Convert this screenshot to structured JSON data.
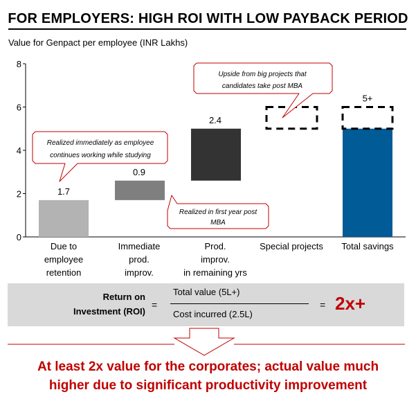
{
  "header": {
    "title": "FOR EMPLOYERS: HIGH ROI WITH LOW PAYBACK PERIOD"
  },
  "chart_data": {
    "type": "bar",
    "subtitle": "Value for Genpact per employee (INR Lakhs)",
    "ylim": [
      0,
      8
    ],
    "yticks": [
      "0",
      "2",
      "4",
      "6",
      "8"
    ],
    "categories": [
      [
        "Due to",
        "employee",
        "retention"
      ],
      [
        "Immediate",
        "prod.",
        "improv."
      ],
      [
        "Prod.",
        "improv.",
        "in remaining yrs"
      ],
      [
        "Special projects"
      ],
      [
        "Total savings"
      ]
    ],
    "bars": [
      {
        "base": 0,
        "value": 1.7,
        "label": "1.7",
        "color": "#b3b3b3"
      },
      {
        "base": 1.7,
        "value": 0.9,
        "label": "0.9",
        "color": "#7f7f7f"
      },
      {
        "base": 2.6,
        "value": 2.4,
        "label": "2.4",
        "color": "#333333"
      },
      {
        "base": 5.0,
        "value": 1.0,
        "label": "",
        "color": "none",
        "dashed": true
      },
      {
        "base": 0,
        "value": 5.0,
        "label": "",
        "color": "#005b96"
      },
      {
        "base": 5.0,
        "value": 1.0,
        "label": "5+",
        "color": "none",
        "dashed": true
      }
    ],
    "annotations": [
      {
        "text": [
          "Realized immediately as employee",
          "continues working while studying"
        ]
      },
      {
        "text": [
          "Realized in first year post",
          "MBA"
        ]
      },
      {
        "text": [
          "Upside from big projects that",
          "candidates take post MBA"
        ]
      }
    ],
    "grid": false
  },
  "roi": {
    "label_line1": "Return on",
    "label_line2": "Investment (ROI)",
    "equals": "=",
    "numerator": "Total value (5L+)",
    "denominator": "Cost incurred (2.5L)",
    "result": "2x+"
  },
  "conclusion": {
    "line1": "At least 2x value for the corporates; actual value much",
    "line2": "higher due to significant productivity improvement"
  },
  "colors": {
    "accent_red": "#c00000",
    "total_bar": "#005b96"
  }
}
